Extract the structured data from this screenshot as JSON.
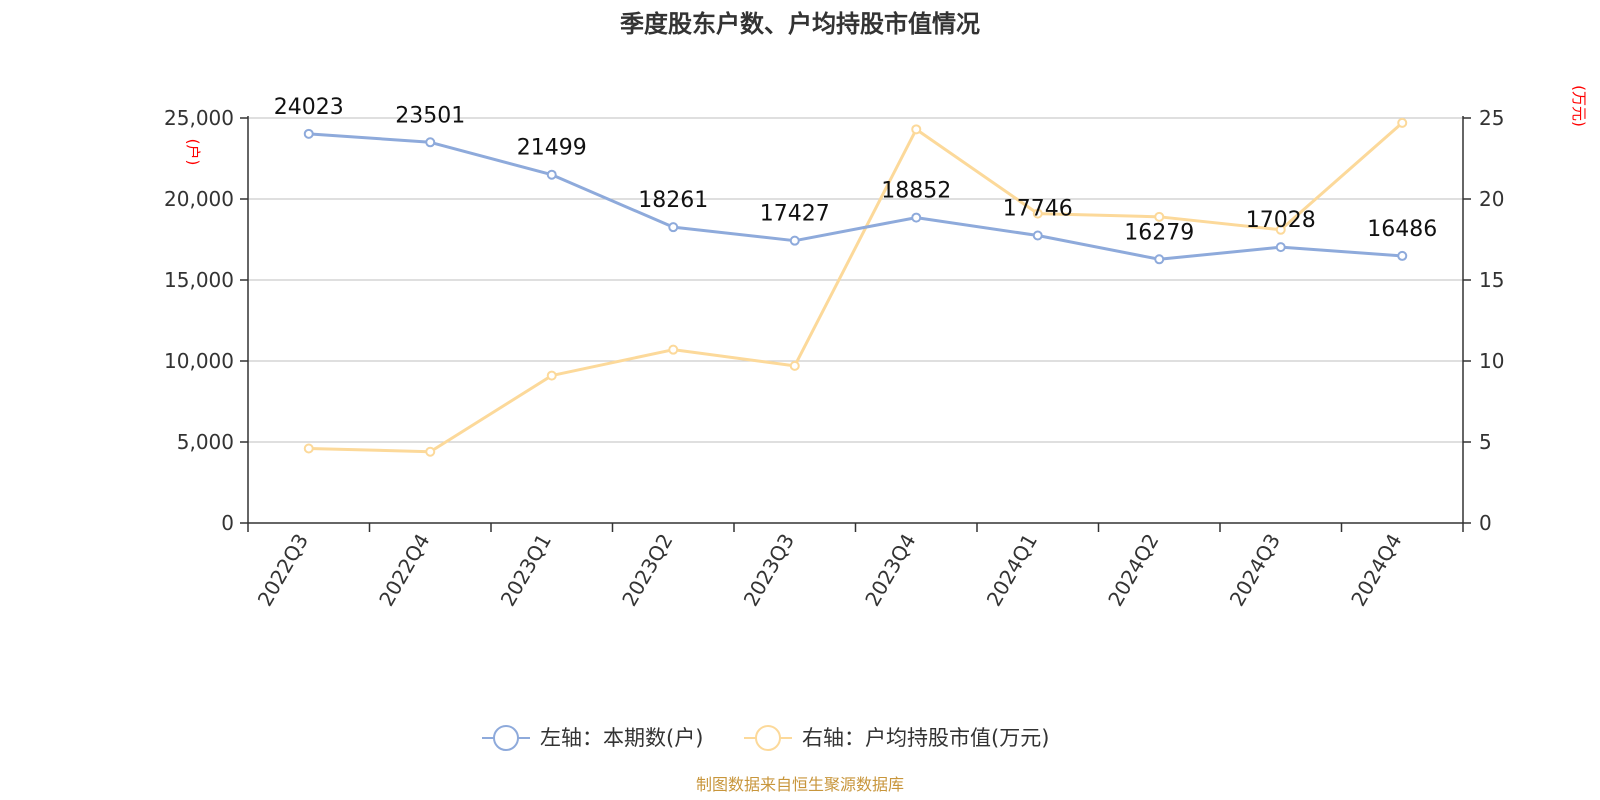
{
  "chart_data": {
    "type": "line",
    "title": "季度股东户数、户均持股市值情况",
    "categories": [
      "2022Q3",
      "2022Q4",
      "2023Q1",
      "2023Q2",
      "2023Q3",
      "2023Q4",
      "2024Q1",
      "2024Q2",
      "2024Q3",
      "2024Q4"
    ],
    "y_left": {
      "unit": "(户)",
      "range": [
        0,
        25000
      ],
      "ticks": [
        0,
        5000,
        10000,
        15000,
        20000,
        25000
      ],
      "tick_labels": [
        "0",
        "5,000",
        "10,000",
        "15,000",
        "20,000",
        "25,000"
      ]
    },
    "y_right": {
      "unit": "(万元)",
      "range": [
        0,
        25
      ],
      "ticks": [
        0,
        5,
        10,
        15,
        20,
        25
      ],
      "tick_labels": [
        "0",
        "5",
        "10",
        "15",
        "20",
        "25"
      ]
    },
    "series": [
      {
        "name": "左轴：本期数(户)",
        "axis": "left",
        "color": "#8eaadb",
        "values": [
          24023,
          23501,
          21499,
          18261,
          17427,
          18852,
          17746,
          16279,
          17028,
          16486
        ],
        "labels": [
          "24023",
          "23501",
          "21499",
          "18261",
          "17427",
          "18852",
          "17746",
          "16279",
          "17028",
          "16486"
        ]
      },
      {
        "name": "右轴：户均持股市值(万元)",
        "axis": "right",
        "color": "#fcd99a",
        "values": [
          4.6,
          4.4,
          9.1,
          10.7,
          9.7,
          24.3,
          19.1,
          18.9,
          18.1,
          24.7
        ]
      }
    ],
    "grid": true,
    "legend": "bottom-center",
    "source": "制图数据来自恒生聚源数据库"
  }
}
